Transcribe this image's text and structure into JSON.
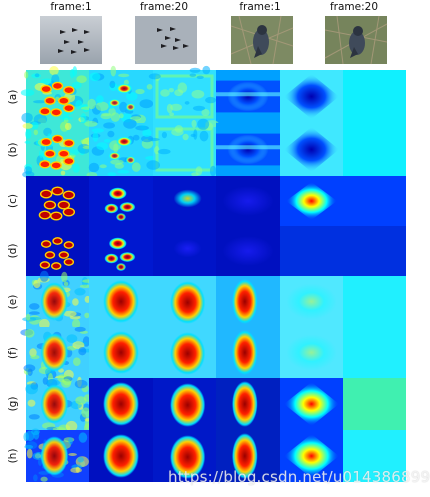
{
  "figure": {
    "column_headers": [
      "frame:1",
      "frame:20",
      "frame:1",
      "frame:20"
    ],
    "row_labels": [
      "(a)",
      "(b)",
      "(c)",
      "(d)",
      "(e)",
      "(f)",
      "(g)",
      "(h)"
    ],
    "watermark": "https://blog.csdn.net/u014386899"
  },
  "colors": {
    "jet_dark_blue": "#00007f",
    "jet_blue": "#0000ff",
    "jet_cyan": "#00ffff",
    "jet_yellow": "#ffff00",
    "jet_red": "#ff0000",
    "sky_gray": "#b9c0c8",
    "foliage_green": "#6b7a4e"
  }
}
